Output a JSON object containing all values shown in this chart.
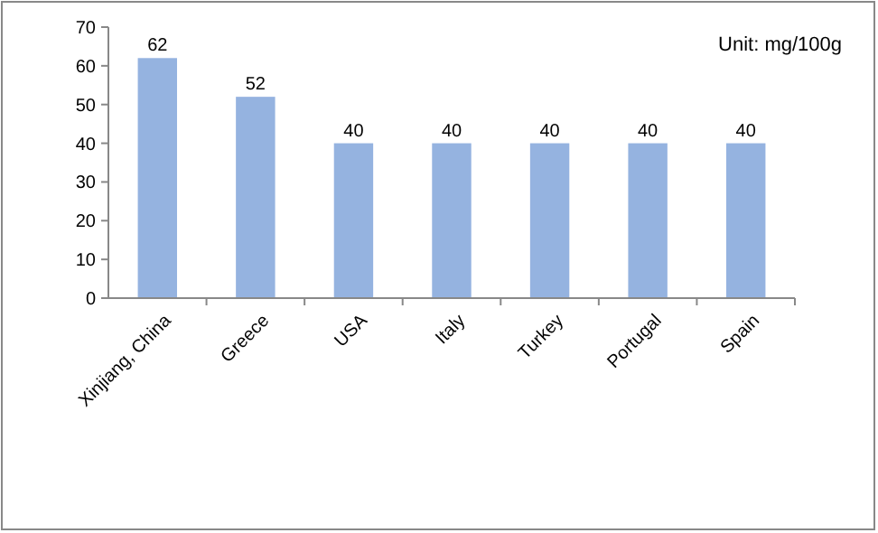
{
  "chart_data": {
    "type": "bar",
    "categories": [
      "Xinjiang, China",
      "Greece",
      "USA",
      "Italy",
      "Turkey",
      "Portugal",
      "Spain"
    ],
    "values": [
      62,
      52,
      40,
      40,
      40,
      40,
      40
    ],
    "color": "#95b3e0",
    "data_labels": true,
    "ylim": [
      0,
      70
    ],
    "yticks": [
      0,
      10,
      20,
      30,
      40,
      50,
      60,
      70
    ],
    "grid": false,
    "annotations": [
      "Unit: mg/100g"
    ]
  }
}
